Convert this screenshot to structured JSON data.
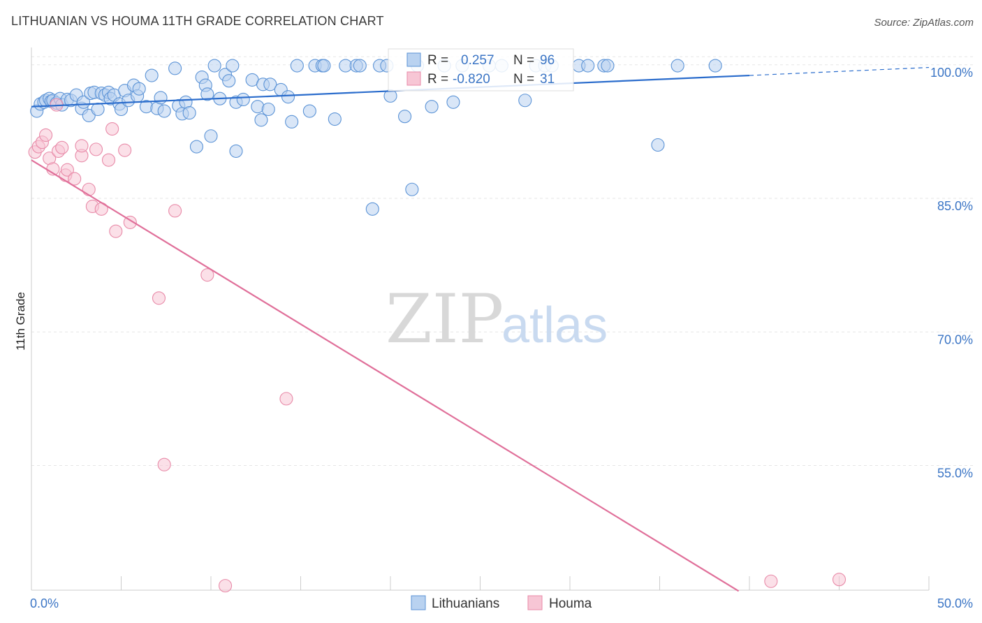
{
  "title": "LITHUANIAN VS HOUMA 11TH GRADE CORRELATION CHART",
  "source": "Source: ZipAtlas.com",
  "watermark": {
    "zip": "ZIP",
    "atlas": "atlas"
  },
  "colors": {
    "blue": "#5b93d6",
    "blue_fill": "#b9d2f0",
    "blue_line": "#2a6ccc",
    "pink": "#e88aa8",
    "pink_fill": "#f7c6d5",
    "pink_line": "#e0709a",
    "label": "#3b75c5"
  },
  "chart_data": {
    "type": "scatter",
    "title": "LITHUANIAN VS HOUMA 11TH GRADE CORRELATION CHART",
    "xlabel": "",
    "ylabel": "11th Grade",
    "xlim": [
      0,
      50
    ],
    "ylim": [
      41,
      101
    ],
    "x_tick_labels": [
      "0.0%",
      "50.0%"
    ],
    "y_ticks": [
      55,
      70,
      85,
      100
    ],
    "y_tick_labels": [
      "55.0%",
      "70.0%",
      "85.0%",
      "100.0%"
    ],
    "grid": true,
    "legend_position": "top-center",
    "legend": [
      {
        "series": "Lithuanians",
        "r_label": "R =",
        "r_value": "0.257",
        "n_label": "N =",
        "n_value": "96"
      },
      {
        "series": "Houma",
        "r_label": "R =",
        "r_value": "-0.820",
        "n_label": "N =",
        "n_value": "31"
      }
    ],
    "series": [
      {
        "name": "Lithuanians",
        "trend": {
          "x0": 0,
          "y0": 95.3,
          "x1": 40,
          "y1": 98.8,
          "dash_to_x": 50,
          "dash_to_y": 99.7
        },
        "points": [
          [
            0.3,
            94.8
          ],
          [
            0.5,
            95.6
          ],
          [
            0.7,
            95.8
          ],
          [
            0.8,
            96.0
          ],
          [
            1.0,
            96.2
          ],
          [
            1.1,
            95.9
          ],
          [
            1.2,
            96.0
          ],
          [
            1.4,
            95.7
          ],
          [
            1.6,
            96.2
          ],
          [
            1.7,
            95.5
          ],
          [
            2.0,
            96.1
          ],
          [
            2.2,
            96.0
          ],
          [
            2.5,
            96.6
          ],
          [
            2.8,
            95.1
          ],
          [
            2.9,
            95.8
          ],
          [
            3.2,
            94.3
          ],
          [
            3.3,
            96.8
          ],
          [
            3.5,
            96.9
          ],
          [
            3.7,
            95.0
          ],
          [
            3.9,
            96.8
          ],
          [
            4.1,
            96.6
          ],
          [
            4.3,
            96.9
          ],
          [
            4.4,
            96.2
          ],
          [
            4.6,
            96.6
          ],
          [
            4.9,
            95.6
          ],
          [
            5.0,
            95.0
          ],
          [
            5.2,
            97.1
          ],
          [
            5.4,
            96.0
          ],
          [
            5.7,
            97.7
          ],
          [
            5.9,
            96.5
          ],
          [
            6.0,
            97.3
          ],
          [
            6.4,
            95.3
          ],
          [
            6.7,
            98.8
          ],
          [
            7.0,
            95.1
          ],
          [
            7.2,
            96.3
          ],
          [
            7.4,
            94.8
          ],
          [
            8.0,
            99.6
          ],
          [
            8.2,
            95.4
          ],
          [
            8.4,
            94.5
          ],
          [
            8.6,
            95.8
          ],
          [
            8.8,
            94.6
          ],
          [
            9.2,
            90.8
          ],
          [
            9.5,
            98.6
          ],
          [
            9.7,
            97.7
          ],
          [
            9.8,
            96.7
          ],
          [
            10.0,
            92.0
          ],
          [
            10.2,
            99.9
          ],
          [
            10.5,
            96.2
          ],
          [
            10.8,
            98.9
          ],
          [
            11.0,
            98.2
          ],
          [
            11.2,
            99.9
          ],
          [
            11.4,
            95.8
          ],
          [
            11.8,
            96.1
          ],
          [
            11.4,
            90.3
          ],
          [
            12.3,
            98.3
          ],
          [
            12.6,
            95.3
          ],
          [
            12.8,
            93.8
          ],
          [
            12.9,
            97.8
          ],
          [
            13.2,
            95.0
          ],
          [
            13.3,
            97.8
          ],
          [
            13.9,
            97.2
          ],
          [
            14.3,
            96.4
          ],
          [
            14.5,
            93.6
          ],
          [
            14.8,
            99.9
          ],
          [
            15.5,
            94.8
          ],
          [
            15.8,
            99.9
          ],
          [
            16.2,
            99.9
          ],
          [
            16.3,
            99.9
          ],
          [
            16.9,
            93.9
          ],
          [
            17.5,
            99.9
          ],
          [
            18.1,
            99.9
          ],
          [
            18.3,
            99.9
          ],
          [
            19.0,
            83.8
          ],
          [
            19.4,
            99.9
          ],
          [
            19.8,
            99.9
          ],
          [
            20.0,
            96.5
          ],
          [
            20.8,
            94.2
          ],
          [
            21.2,
            86.0
          ],
          [
            21.5,
            99.9
          ],
          [
            22.3,
            95.3
          ],
          [
            23.0,
            99.9
          ],
          [
            23.5,
            95.8
          ],
          [
            24.0,
            99.9
          ],
          [
            25.5,
            99.9
          ],
          [
            26.2,
            99.9
          ],
          [
            27.5,
            96.0
          ],
          [
            28.1,
            99.9
          ],
          [
            28.6,
            99.9
          ],
          [
            29.0,
            99.9
          ],
          [
            30.5,
            99.9
          ],
          [
            31.0,
            99.9
          ],
          [
            31.9,
            99.9
          ],
          [
            32.1,
            99.9
          ],
          [
            34.9,
            91.0
          ],
          [
            38.1,
            99.9
          ],
          [
            36.0,
            99.9
          ]
        ]
      },
      {
        "name": "Houma",
        "trend": {
          "x0": 0,
          "y0": 89.3,
          "x1": 39.4,
          "y1": 40.9
        },
        "points": [
          [
            0.2,
            90.2
          ],
          [
            0.4,
            90.8
          ],
          [
            0.6,
            91.3
          ],
          [
            0.8,
            92.1
          ],
          [
            1.0,
            89.5
          ],
          [
            1.2,
            88.3
          ],
          [
            1.4,
            95.5
          ],
          [
            1.5,
            90.3
          ],
          [
            1.7,
            90.7
          ],
          [
            1.9,
            87.6
          ],
          [
            2.0,
            88.2
          ],
          [
            2.4,
            87.2
          ],
          [
            2.8,
            89.8
          ],
          [
            2.8,
            90.9
          ],
          [
            3.2,
            86.0
          ],
          [
            3.4,
            84.1
          ],
          [
            3.6,
            90.5
          ],
          [
            3.9,
            83.8
          ],
          [
            4.3,
            89.3
          ],
          [
            4.5,
            92.8
          ],
          [
            4.7,
            81.3
          ],
          [
            5.2,
            90.4
          ],
          [
            5.5,
            82.3
          ],
          [
            7.1,
            73.8
          ],
          [
            7.4,
            55.1
          ],
          [
            8.0,
            83.6
          ],
          [
            9.8,
            76.4
          ],
          [
            10.8,
            41.5
          ],
          [
            14.2,
            62.5
          ],
          [
            41.2,
            42.0
          ],
          [
            45.0,
            42.2
          ]
        ]
      }
    ]
  }
}
